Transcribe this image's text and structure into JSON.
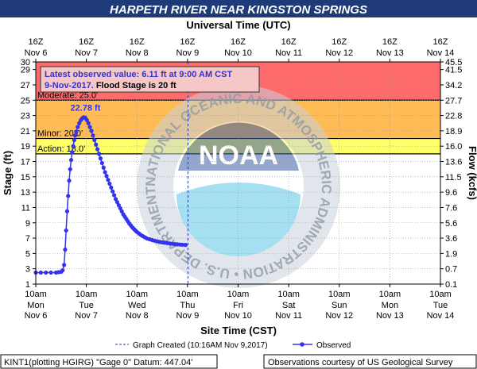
{
  "chart_data": {
    "type": "line",
    "title": "HARPETH RIVER NEAR KINGSTON SPRINGS",
    "top_axis_title": "Universal Time (UTC)",
    "bottom_axis_title": "Site Time (CST)",
    "ylabel_left": "Stage (ft)",
    "ylabel_right": "Flow (kcfs)",
    "ylim": [
      1,
      30
    ],
    "y_ticks": [
      1,
      3,
      5,
      7,
      9,
      11,
      13,
      15,
      17,
      19,
      21,
      23,
      25,
      27,
      29,
      30
    ],
    "flow_ticks": [
      {
        "stage": 1,
        "label": "0.1"
      },
      {
        "stage": 3,
        "label": "0.7"
      },
      {
        "stage": 5,
        "label": "1.9"
      },
      {
        "stage": 7,
        "label": "3.6"
      },
      {
        "stage": 9,
        "label": "5.6"
      },
      {
        "stage": 11,
        "label": "7.6"
      },
      {
        "stage": 13,
        "label": "9.6"
      },
      {
        "stage": 15,
        "label": "11.5"
      },
      {
        "stage": 17,
        "label": "13.6"
      },
      {
        "stage": 19,
        "label": "16.0"
      },
      {
        "stage": 21,
        "label": "18.9"
      },
      {
        "stage": 23,
        "label": "22.8"
      },
      {
        "stage": 25,
        "label": "27.7"
      },
      {
        "stage": 27,
        "label": "34.2"
      },
      {
        "stage": 29,
        "label": "41.5"
      },
      {
        "stage": 30,
        "label": "45.5"
      }
    ],
    "x_ticks_top": [
      {
        "l1": "16Z",
        "l2": "Nov 6"
      },
      {
        "l1": "16Z",
        "l2": "Nov 7"
      },
      {
        "l1": "16Z",
        "l2": "Nov 8"
      },
      {
        "l1": "16Z",
        "l2": "Nov 9"
      },
      {
        "l1": "16Z",
        "l2": "Nov 10"
      },
      {
        "l1": "16Z",
        "l2": "Nov 11"
      },
      {
        "l1": "16Z",
        "l2": "Nov 12"
      },
      {
        "l1": "16Z",
        "l2": "Nov 13"
      },
      {
        "l1": "16Z",
        "l2": "Nov 14"
      }
    ],
    "x_ticks_bottom": [
      {
        "l1": "10am",
        "l2": "Mon",
        "l3": "Nov 6"
      },
      {
        "l1": "10am",
        "l2": "Tue",
        "l3": "Nov 7"
      },
      {
        "l1": "10am",
        "l2": "Wed",
        "l3": "Nov 8"
      },
      {
        "l1": "10am",
        "l2": "Thu",
        "l3": "Nov 9"
      },
      {
        "l1": "10am",
        "l2": "Fri",
        "l3": "Nov 10"
      },
      {
        "l1": "10am",
        "l2": "Sat",
        "l3": "Nov 11"
      },
      {
        "l1": "10am",
        "l2": "Sun",
        "l3": "Nov 12"
      },
      {
        "l1": "10am",
        "l2": "Mon",
        "l3": "Nov 13"
      },
      {
        "l1": "10am",
        "l2": "Tue",
        "l3": "Nov 14"
      }
    ],
    "x_unit": "days after Nov 6 10am CST",
    "x_range": [
      0,
      8
    ],
    "thresholds": [
      {
        "name": "Action",
        "label": "Action: 18.0'",
        "from": 18,
        "to": 20,
        "color": "#ffff66"
      },
      {
        "name": "Minor",
        "label": "Minor: 20.0'",
        "from": 20,
        "to": 25,
        "color": "#ffbb55"
      },
      {
        "name": "Moderate",
        "label": "Moderate: 25.0'",
        "from": 25,
        "to": 30,
        "color": "#ff6b6b"
      }
    ],
    "series": [
      {
        "name": "Observed",
        "color": "#3333ee",
        "x": [
          0.0,
          0.1,
          0.2,
          0.3,
          0.4,
          0.45,
          0.5,
          0.53,
          0.56,
          0.58,
          0.6,
          0.62,
          0.64,
          0.66,
          0.68,
          0.7,
          0.72,
          0.74,
          0.76,
          0.78,
          0.8,
          0.83,
          0.86,
          0.89,
          0.92,
          0.95,
          0.98,
          1.01,
          1.04,
          1.07,
          1.1,
          1.13,
          1.16,
          1.19,
          1.22,
          1.25,
          1.28,
          1.31,
          1.34,
          1.37,
          1.4,
          1.43,
          1.46,
          1.49,
          1.52,
          1.55,
          1.58,
          1.61,
          1.64,
          1.67,
          1.7,
          1.73,
          1.76,
          1.79,
          1.82,
          1.85,
          1.88,
          1.91,
          1.94,
          1.97,
          2.0,
          2.04,
          2.08,
          2.12,
          2.16,
          2.2,
          2.25,
          2.3,
          2.35,
          2.4,
          2.45,
          2.5,
          2.55,
          2.6,
          2.65,
          2.7,
          2.75,
          2.8,
          2.85,
          2.9,
          2.96
        ],
        "y": [
          2.5,
          2.5,
          2.5,
          2.5,
          2.5,
          2.55,
          2.6,
          2.8,
          3.5,
          5.5,
          8.0,
          10.5,
          12.5,
          14.5,
          16.0,
          17.2,
          18.2,
          19.0,
          19.8,
          20.4,
          20.9,
          21.5,
          22.0,
          22.4,
          22.65,
          22.78,
          22.7,
          22.4,
          22.0,
          21.5,
          21.0,
          20.4,
          19.8,
          19.2,
          18.6,
          18.0,
          17.4,
          16.8,
          16.2,
          15.6,
          15.1,
          14.6,
          14.1,
          13.6,
          13.1,
          12.6,
          12.1,
          11.7,
          11.3,
          10.9,
          10.5,
          10.1,
          9.8,
          9.5,
          9.2,
          8.9,
          8.65,
          8.4,
          8.2,
          8.0,
          7.8,
          7.6,
          7.4,
          7.25,
          7.1,
          6.95,
          6.85,
          6.75,
          6.65,
          6.58,
          6.5,
          6.45,
          6.4,
          6.35,
          6.3,
          6.26,
          6.22,
          6.19,
          6.16,
          6.13,
          6.11
        ]
      }
    ],
    "peak_label": "22.78 ft",
    "created_x": 3.01,
    "info_line1": "Latest observed value: 6.11 ft at 9:00 AM CST",
    "info_line2_date": "9-Nov-2017.",
    "info_line2_rest": "  Flood Stage is 20 ft",
    "legend_created": "Graph Created (10:16AM Nov 9,2017)",
    "legend_observed": "Observed",
    "footer_left": "KINT1(plotting HGIRG) \"Gage 0\" Datum: 447.04'",
    "footer_right": "Observations courtesy of US Geological Survey",
    "watermark_text": "NATIONAL OCEANIC AND ATMOSPHERIC ADMINISTRATION • U.S. DEPARTMENT OF COMMERCE",
    "watermark_logo": "NOAA",
    "grid": true
  }
}
